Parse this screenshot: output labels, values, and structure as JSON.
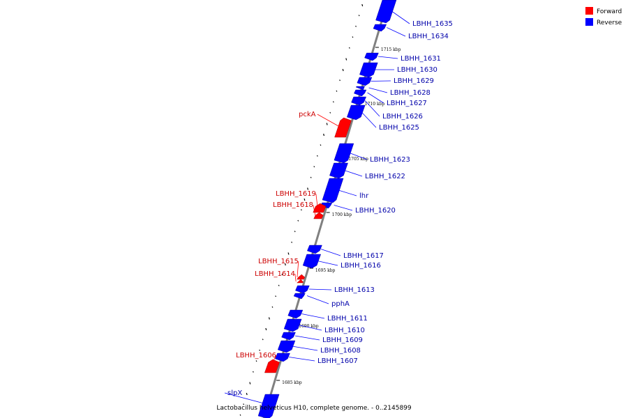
{
  "caption": "Lactobacillus helveticus H10, complete genome. - 0..2145899",
  "legend": [
    {
      "label": "Forward",
      "color": "#ff0000"
    },
    {
      "label": "Reverse",
      "color": "#0000ff"
    }
  ],
  "colors": {
    "forward": "#ff0000",
    "reverse": "#0000ff",
    "forward_text": "#cc0000",
    "reverse_text": "#0000aa",
    "backbone": "#808080"
  },
  "ticks": [
    "1715 kbp",
    "1710 kbp",
    "1705 kbp",
    "1700 kbp",
    "1695 kbp",
    "1690 kbp",
    "1685 kbp"
  ],
  "genes": [
    {
      "name": "LBHH_1635",
      "strand": "reverse"
    },
    {
      "name": "LBHH_1634",
      "strand": "reverse"
    },
    {
      "name": "LBHH_1631",
      "strand": "reverse"
    },
    {
      "name": "LBHH_1630",
      "strand": "reverse"
    },
    {
      "name": "LBHH_1629",
      "strand": "reverse"
    },
    {
      "name": "LBHH_1628",
      "strand": "reverse"
    },
    {
      "name": "LBHH_1627",
      "strand": "reverse"
    },
    {
      "name": "LBHH_1626",
      "strand": "reverse"
    },
    {
      "name": "LBHH_1625",
      "strand": "reverse"
    },
    {
      "name": "pckA",
      "strand": "forward"
    },
    {
      "name": "LBHH_1623",
      "strand": "reverse"
    },
    {
      "name": "LBHH_1622",
      "strand": "reverse"
    },
    {
      "name": "lhr",
      "strand": "reverse"
    },
    {
      "name": "LBHH_1620",
      "strand": "reverse"
    },
    {
      "name": "LBHH_1619",
      "strand": "forward"
    },
    {
      "name": "LBHH_1618",
      "strand": "forward"
    },
    {
      "name": "LBHH_1617",
      "strand": "reverse"
    },
    {
      "name": "LBHH_1616",
      "strand": "reverse"
    },
    {
      "name": "LBHH_1615",
      "strand": "forward"
    },
    {
      "name": "LBHH_1614",
      "strand": "forward"
    },
    {
      "name": "LBHH_1613",
      "strand": "reverse"
    },
    {
      "name": "pphA",
      "strand": "reverse"
    },
    {
      "name": "LBHH_1611",
      "strand": "reverse"
    },
    {
      "name": "LBHH_1610",
      "strand": "reverse"
    },
    {
      "name": "LBHH_1609",
      "strand": "reverse"
    },
    {
      "name": "LBHH_1608",
      "strand": "reverse"
    },
    {
      "name": "LBHH_1607",
      "strand": "reverse"
    },
    {
      "name": "LBHH_1606",
      "strand": "forward"
    },
    {
      "name": "slpX",
      "strand": "reverse"
    }
  ]
}
